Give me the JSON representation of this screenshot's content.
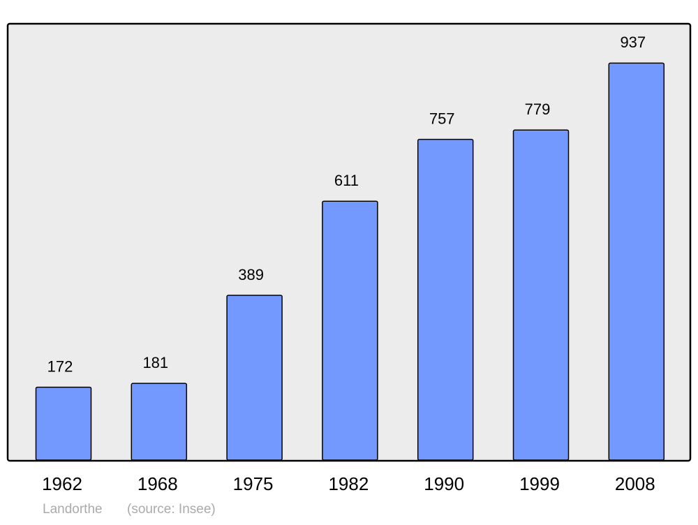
{
  "chart_data": {
    "type": "bar",
    "categories": [
      "1962",
      "1968",
      "1975",
      "1982",
      "1990",
      "1999",
      "2008"
    ],
    "values": [
      172,
      181,
      389,
      611,
      757,
      779,
      937
    ],
    "color": "#7399ff",
    "ylim": [
      0,
      1030
    ],
    "caption": "Landorthe",
    "source": "(source: Insee)"
  }
}
